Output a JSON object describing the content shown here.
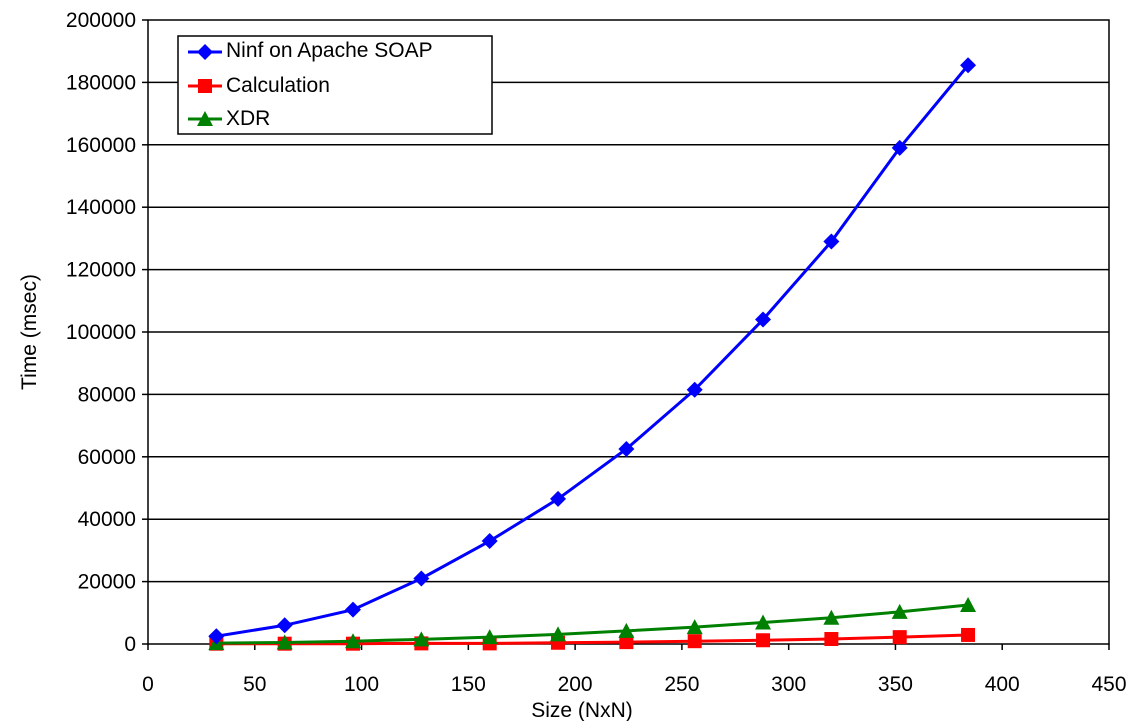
{
  "chart_data": {
    "type": "line",
    "title": "",
    "xlabel": "Size (NxN)",
    "ylabel": "Time (msec)",
    "xlim": [
      0,
      450
    ],
    "ylim": [
      0,
      200000
    ],
    "xticks": [
      "0",
      "50",
      "100",
      "150",
      "200",
      "250",
      "300",
      "350",
      "400",
      "450"
    ],
    "yticks": [
      "0",
      "20000",
      "40000",
      "60000",
      "80000",
      "100000",
      "120000",
      "140000",
      "160000",
      "180000",
      "200000"
    ],
    "grid": "horizontal",
    "legend_position": "top-left",
    "x": [
      32,
      64,
      96,
      128,
      160,
      192,
      224,
      256,
      288,
      320,
      352,
      384
    ],
    "series": [
      {
        "name": "Ninf on Apache SOAP",
        "color": "#0000ff",
        "marker": "diamond",
        "values": [
          2500,
          6000,
          11000,
          21000,
          33000,
          46500,
          62500,
          81500,
          104000,
          129000,
          159000,
          185500
        ]
      },
      {
        "name": "Calculation",
        "color": "#ff0000",
        "marker": "square",
        "values": [
          100,
          100,
          100,
          200,
          200,
          400,
          600,
          900,
          1200,
          1600,
          2200,
          2900
        ]
      },
      {
        "name": "XDR",
        "color": "#008000",
        "marker": "triangle",
        "values": [
          300,
          500,
          900,
          1500,
          2200,
          3100,
          4200,
          5400,
          6900,
          8400,
          10300,
          12500
        ]
      }
    ]
  }
}
